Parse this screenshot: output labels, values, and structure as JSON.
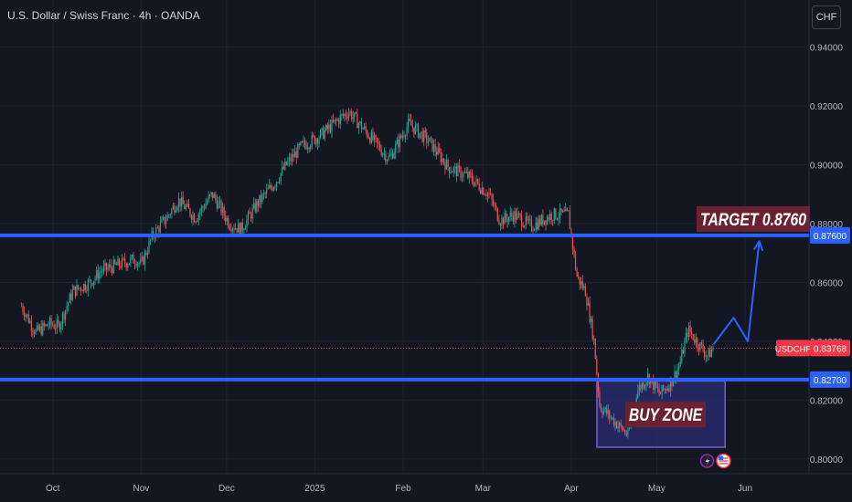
{
  "header": {
    "symbol_title": "U.S. Dollar / Swiss Franc · 4h · OANDA",
    "currency_button": "CHF"
  },
  "colors": {
    "background": "#131722",
    "up_candle": "#26a69a",
    "down_candle": "#ef5350",
    "level_line": "#2962ff",
    "target_label_bg": "#6b2230",
    "buy_zone_fill": "#2a2e72",
    "buy_zone_border": "#7b5cd6",
    "price_tag": "#f23645",
    "arrow": "#2962ff"
  },
  "chart_data": {
    "type": "candlestick",
    "symbol": "USDCHF",
    "timeframe": "4h",
    "ylim": [
      0.795,
      0.956
    ],
    "y_ticks": [
      "0.94000",
      "0.92000",
      "0.90000",
      "0.88000",
      "0.86000",
      "0.84000",
      "0.82000",
      "0.80000"
    ],
    "x_ticks": [
      "Oct",
      "Nov",
      "Dec",
      "2025",
      "Feb",
      "Mar",
      "Apr",
      "May",
      "Jun"
    ],
    "price_path": [
      [
        "2024-09-20",
        0.852
      ],
      [
        "2024-09-25",
        0.843
      ],
      [
        "2024-09-30",
        0.846
      ],
      [
        "2024-10-03",
        0.845
      ],
      [
        "2024-10-08",
        0.857
      ],
      [
        "2024-10-14",
        0.86
      ],
      [
        "2024-10-18",
        0.864
      ],
      [
        "2024-10-24",
        0.866
      ],
      [
        "2024-10-30",
        0.868
      ],
      [
        "2024-11-01",
        0.866
      ],
      [
        "2024-11-05",
        0.876
      ],
      [
        "2024-11-10",
        0.882
      ],
      [
        "2024-11-14",
        0.888
      ],
      [
        "2024-11-20",
        0.882
      ],
      [
        "2024-11-26",
        0.89
      ],
      [
        "2024-12-02",
        0.88
      ],
      [
        "2024-12-06",
        0.878
      ],
      [
        "2024-12-12",
        0.887
      ],
      [
        "2024-12-18",
        0.894
      ],
      [
        "2024-12-22",
        0.9
      ],
      [
        "2024-12-27",
        0.906
      ],
      [
        "2025-01-03",
        0.91
      ],
      [
        "2025-01-10",
        0.916
      ],
      [
        "2025-01-13",
        0.918
      ],
      [
        "2025-01-20",
        0.91
      ],
      [
        "2025-01-27",
        0.902
      ],
      [
        "2025-02-03",
        0.914
      ],
      [
        "2025-02-10",
        0.908
      ],
      [
        "2025-02-17",
        0.899
      ],
      [
        "2025-02-24",
        0.896
      ],
      [
        "2025-03-03",
        0.89
      ],
      [
        "2025-03-07",
        0.881
      ],
      [
        "2025-03-12",
        0.883
      ],
      [
        "2025-03-18",
        0.879
      ],
      [
        "2025-03-25",
        0.883
      ],
      [
        "2025-03-31",
        0.883
      ],
      [
        "2025-04-03",
        0.862
      ],
      [
        "2025-04-06",
        0.857
      ],
      [
        "2025-04-09",
        0.84
      ],
      [
        "2025-04-11",
        0.818
      ],
      [
        "2025-04-15",
        0.814
      ],
      [
        "2025-04-21",
        0.808
      ],
      [
        "2025-04-24",
        0.823
      ],
      [
        "2025-04-28",
        0.828
      ],
      [
        "2025-05-02",
        0.822
      ],
      [
        "2025-05-06",
        0.826
      ],
      [
        "2025-05-09",
        0.832
      ],
      [
        "2025-05-12",
        0.844
      ],
      [
        "2025-05-15",
        0.84
      ],
      [
        "2025-05-19",
        0.835
      ],
      [
        "2025-05-21",
        0.838
      ]
    ],
    "levels": [
      {
        "price": 0.876,
        "label": "0.87600"
      },
      {
        "price": 0.827,
        "label": "0.82700"
      }
    ],
    "current_price": {
      "price": 0.83768,
      "label": "0.83768",
      "symbol_label": "USDCHF"
    },
    "annotations": {
      "target_text": "TARGET 0.8760",
      "buy_zone_text": "BUY ZONE",
      "buy_zone": {
        "x_from": "2025-04-10",
        "x_to": "2025-05-25",
        "y_from": 0.804,
        "y_to": 0.8265
      },
      "projection_path": [
        [
          "2025-05-21",
          0.839
        ],
        [
          "2025-05-28",
          0.848
        ],
        [
          "2025-06-02",
          0.84
        ],
        [
          "2025-06-06",
          0.874
        ]
      ]
    }
  }
}
